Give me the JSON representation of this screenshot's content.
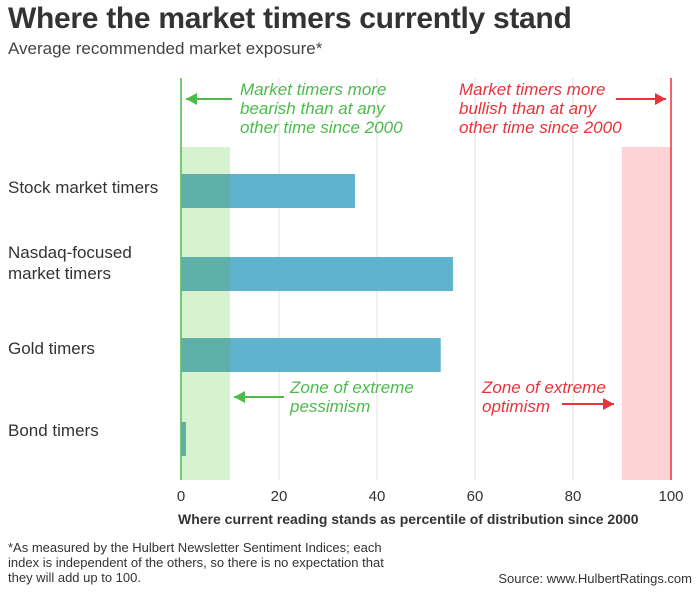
{
  "header": {
    "title": "Where the market timers currently stand",
    "subtitle": "Average recommended market exposure*"
  },
  "colors": {
    "bar": "#5fb3cc",
    "bar_overlap": "#5fb0a8",
    "bearish": "#4cbb4c",
    "bearish_zone": "#d6f2cf",
    "bullish": "#e8333b",
    "bullish_zone": "#fdd3d5",
    "grid": "#e2e2e2",
    "text": "#333333"
  },
  "chart_data": {
    "type": "bar",
    "orientation": "horizontal",
    "categories": [
      [
        "Stock market timers"
      ],
      [
        "Nasdaq-focused",
        "market timers"
      ],
      [
        "Gold timers"
      ],
      [
        "Bond timers"
      ]
    ],
    "values": [
      35.5,
      55.5,
      53,
      1
    ],
    "xlabel": "Where current reading stands as percentile of distribution since 2000",
    "xlim": [
      0,
      100
    ],
    "xticks": [
      "0",
      "20",
      "40",
      "60",
      "80",
      "100"
    ],
    "zones": [
      {
        "from": 0,
        "to": 10,
        "label": [
          "Zone of extreme",
          "pessimism"
        ]
      },
      {
        "from": 90,
        "to": 100,
        "label": [
          "Zone of extreme",
          "optimism"
        ]
      }
    ],
    "annotations": {
      "bearish": [
        "Market timers more",
        "bearish than at any",
        "other time since 2000"
      ],
      "bullish": [
        "Market timers more",
        "bullish than at any",
        "other time since 2000"
      ]
    }
  },
  "footer": {
    "footnote": "*As measured by the Hulbert Newsletter Sentiment Indices; each index is independent of the others, so there is no expectation that they will add up to 100.",
    "source": "Source: www.HulbertRatings.com"
  }
}
